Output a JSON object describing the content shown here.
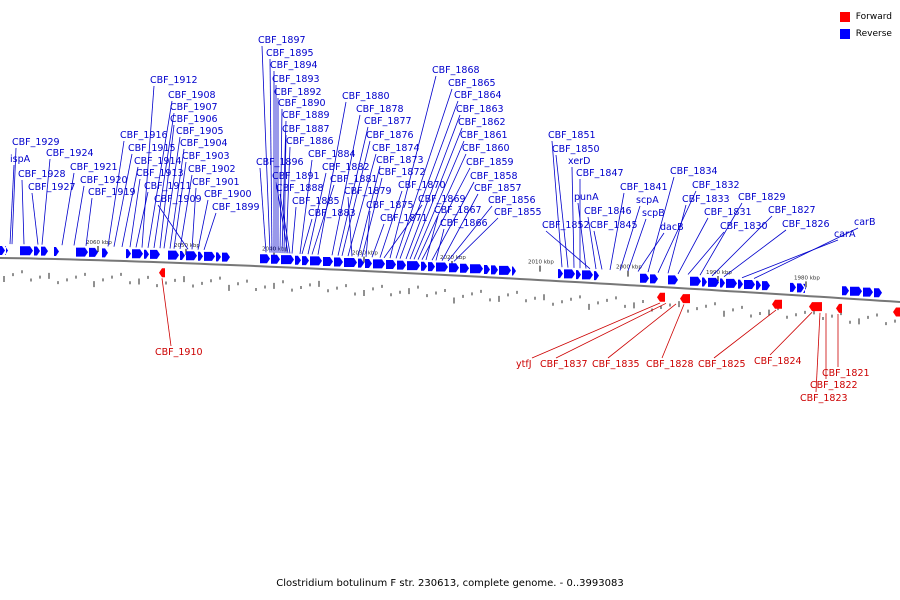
{
  "legend": {
    "forward": {
      "label": "Forward",
      "color": "#ff0000"
    },
    "reverse": {
      "label": "Reverse",
      "color": "#0000ff"
    }
  },
  "caption": "Clostridium botulinum F str. 230613, complete genome. - 0..3993083",
  "ticks": [
    "2060 kbp",
    "2050 kbp",
    "2040 kbp",
    "2030 kbp",
    "2020 kbp",
    "2010 kbp",
    "2000 kbp",
    "1990 kbp",
    "1980 kbp"
  ],
  "reverse_genes": [
    "CBF_1929",
    "ispA",
    "CBF_1928",
    "CBF_1924",
    "CBF_1927",
    "CBF_1921",
    "CBF_1920",
    "CBF_1919",
    "CBF_1916",
    "CBF_1915",
    "CBF_1914",
    "CBF_1913",
    "CBF_1911",
    "CBF_1912",
    "CBF_1908",
    "CBF_1907",
    "CBF_1906",
    "CBF_1905",
    "CBF_1904",
    "CBF_1903",
    "CBF_1902",
    "CBF_1909",
    "CBF_1901",
    "CBF_1900",
    "CBF_1899",
    "CBF_1897",
    "CBF_1895",
    "CBF_1894",
    "CBF_1893",
    "CBF_1892",
    "CBF_1890",
    "CBF_1889",
    "CBF_1887",
    "CBF_1886",
    "CBF_1896",
    "CBF_1891",
    "CBF_1888",
    "CBF_1885",
    "CBF_1884",
    "CBF_1883",
    "CBF_1882",
    "CBF_1881",
    "CBF_1880",
    "CBF_1878",
    "CBF_1877",
    "CBF_1876",
    "CBF_1874",
    "CBF_1879",
    "CBF_1873",
    "CBF_1872",
    "CBF_1875",
    "CBF_1871",
    "CBF_1870",
    "CBF_1869",
    "CBF_1868",
    "CBF_1865",
    "CBF_1864",
    "CBF_1863",
    "CBF_1862",
    "CBF_1861",
    "CBF_1860",
    "CBF_1859",
    "CBF_1867",
    "CBF_1858",
    "CBF_1866",
    "CBF_1857",
    "CBF_1856",
    "CBF_1855",
    "CBF_1851",
    "CBF_1850",
    "xerD",
    "CBF_1847",
    "punA",
    "CBF_1852",
    "CBF_1846",
    "CBF_1845",
    "CBF_1841",
    "scpA",
    "scpB",
    "dacB",
    "CBF_1834",
    "CBF_1832",
    "CBF_1833",
    "CBF_1831",
    "CBF_1830",
    "CBF_1829",
    "CBF_1827",
    "CBF_1826",
    "carA",
    "carB"
  ],
  "forward_genes": [
    "CBF_1910",
    "ytfJ",
    "CBF_1837",
    "CBF_1835",
    "CBF_1828",
    "CBF_1825",
    "CBF_1824",
    "CBF_1821",
    "CBF_1822",
    "CBF_1823"
  ]
}
